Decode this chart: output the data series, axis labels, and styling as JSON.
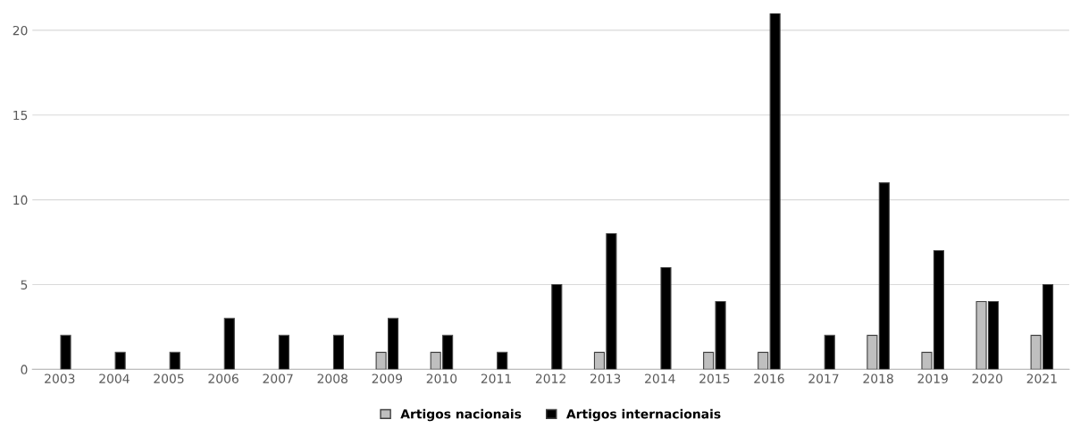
{
  "chart_data": {
    "type": "bar",
    "categories": [
      "2003",
      "2004",
      "2005",
      "2006",
      "2007",
      "2008",
      "2009",
      "2010",
      "2011",
      "2012",
      "2013",
      "2014",
      "2015",
      "2016",
      "2017",
      "2018",
      "2019",
      "2020",
      "2021"
    ],
    "series": [
      {
        "name": "Artigos nacionais",
        "color": "#bfbfbf",
        "values": [
          0,
          0,
          0,
          0,
          0,
          0,
          1,
          1,
          0,
          0,
          1,
          0,
          1,
          1,
          0,
          2,
          1,
          4,
          2
        ]
      },
      {
        "name": "Artigos internacionais",
        "color": "#000000",
        "values": [
          2,
          1,
          1,
          3,
          2,
          2,
          3,
          2,
          1,
          5,
          8,
          6,
          4,
          21,
          2,
          11,
          7,
          4,
          5
        ]
      }
    ],
    "ylim": [
      0,
      21
    ],
    "yticks": [
      0,
      5,
      10,
      15,
      20
    ],
    "grid": "y",
    "legend": "bottom"
  }
}
